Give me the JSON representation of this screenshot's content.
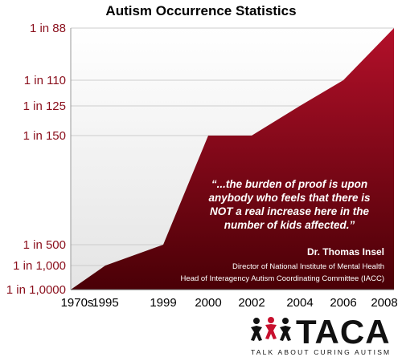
{
  "chart_data": {
    "type": "area",
    "title": "Autism Occurrence Statistics",
    "x": [
      "1970s",
      "1995",
      "1999",
      "2000",
      "2002",
      "2004",
      "2006",
      "2008"
    ],
    "y_levels": [
      "1 in 1,0000",
      "1 in 1,000",
      "1 in 500",
      "1 in 150",
      "1 in 125",
      "1 in 110",
      "1 in 88"
    ],
    "series": [
      {
        "values": [
          "1 in 1,0000",
          "1 in 1,000",
          "1 in 500",
          "1 in 150",
          "1 in 150",
          "1 in 125",
          "1 in 110",
          "1 in 88"
        ]
      }
    ],
    "grid": true,
    "colors": {
      "fill_top": "#b3102a",
      "fill_bottom": "#4a0006",
      "tick_text": "#8a0f1c",
      "grid": "#cccccc"
    }
  },
  "annotation": {
    "quote_lines": [
      "“...the burden of proof is upon",
      "anybody who feels that there is",
      "NOT a real increase here in the",
      "number of kids affected.”"
    ],
    "name": "Dr. Thomas Insel",
    "role_lines": [
      "Director of National Institute of Mental Health",
      "Head of Interagency Autism Coordinating Committee (IACC)"
    ]
  },
  "logo": {
    "word": "TACA",
    "tagline": "TALK ABOUT CURING AUTISM",
    "icon": "taca-figures-icon"
  }
}
